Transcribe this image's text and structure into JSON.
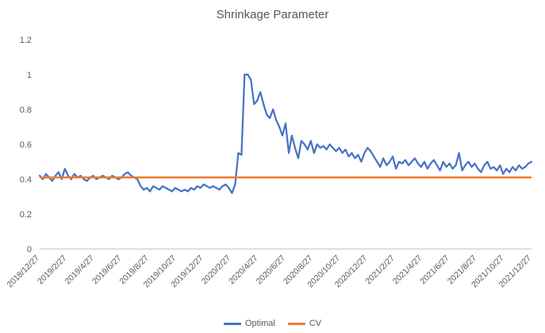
{
  "chart_data": {
    "type": "line",
    "title": "Shrinkage Parameter",
    "xlabel": "",
    "ylabel": "",
    "ylim": [
      0,
      1.2
    ],
    "y_tick_labels": [
      "0",
      "0.2",
      "0.4",
      "0.6",
      "0.8",
      "1",
      "1.2"
    ],
    "x_tick_labels": [
      "2018/12/27",
      "2019/2/27",
      "2019/4/27",
      "2019/6/27",
      "2019/8/27",
      "2019/10/27",
      "2019/12/27",
      "2020/2/27",
      "2020/4/27",
      "2020/6/27",
      "2020/8/27",
      "2020/10/27",
      "2020/12/27",
      "2021/2/27",
      "2021/4/27",
      "2021/6/27",
      "2021/8/27",
      "2021/10/27",
      "2021/12/27"
    ],
    "grid": false,
    "legend_position": "bottom",
    "axis_color": "#bfbfbf",
    "text_color": "#595959",
    "series": [
      {
        "name": "Optimal",
        "color": "#4472C4",
        "values": [
          0.42,
          0.4,
          0.43,
          0.41,
          0.39,
          0.42,
          0.44,
          0.4,
          0.46,
          0.42,
          0.4,
          0.43,
          0.41,
          0.42,
          0.4,
          0.39,
          0.41,
          0.42,
          0.4,
          0.41,
          0.42,
          0.41,
          0.4,
          0.42,
          0.41,
          0.4,
          0.41,
          0.43,
          0.44,
          0.42,
          0.41,
          0.4,
          0.36,
          0.34,
          0.35,
          0.33,
          0.36,
          0.35,
          0.34,
          0.36,
          0.35,
          0.34,
          0.33,
          0.35,
          0.34,
          0.33,
          0.34,
          0.33,
          0.35,
          0.34,
          0.36,
          0.35,
          0.37,
          0.36,
          0.35,
          0.36,
          0.35,
          0.34,
          0.36,
          0.37,
          0.35,
          0.32,
          0.37,
          0.55,
          0.54,
          1.0,
          1.0,
          0.97,
          0.83,
          0.85,
          0.9,
          0.83,
          0.77,
          0.75,
          0.8,
          0.74,
          0.7,
          0.65,
          0.72,
          0.55,
          0.65,
          0.58,
          0.52,
          0.62,
          0.6,
          0.57,
          0.62,
          0.55,
          0.6,
          0.58,
          0.59,
          0.57,
          0.6,
          0.58,
          0.56,
          0.58,
          0.55,
          0.57,
          0.53,
          0.55,
          0.52,
          0.54,
          0.5,
          0.55,
          0.58,
          0.56,
          0.53,
          0.5,
          0.47,
          0.52,
          0.48,
          0.5,
          0.53,
          0.46,
          0.5,
          0.49,
          0.51,
          0.48,
          0.5,
          0.52,
          0.49,
          0.47,
          0.5,
          0.46,
          0.49,
          0.51,
          0.48,
          0.45,
          0.5,
          0.47,
          0.49,
          0.46,
          0.48,
          0.55,
          0.45,
          0.48,
          0.5,
          0.47,
          0.49,
          0.46,
          0.44,
          0.48,
          0.5,
          0.46,
          0.47,
          0.45,
          0.48,
          0.43,
          0.46,
          0.44,
          0.47,
          0.45,
          0.48,
          0.46,
          0.47,
          0.49,
          0.5
        ]
      },
      {
        "name": "CV",
        "color": "#ED7D31",
        "constant": 0.41
      }
    ]
  }
}
